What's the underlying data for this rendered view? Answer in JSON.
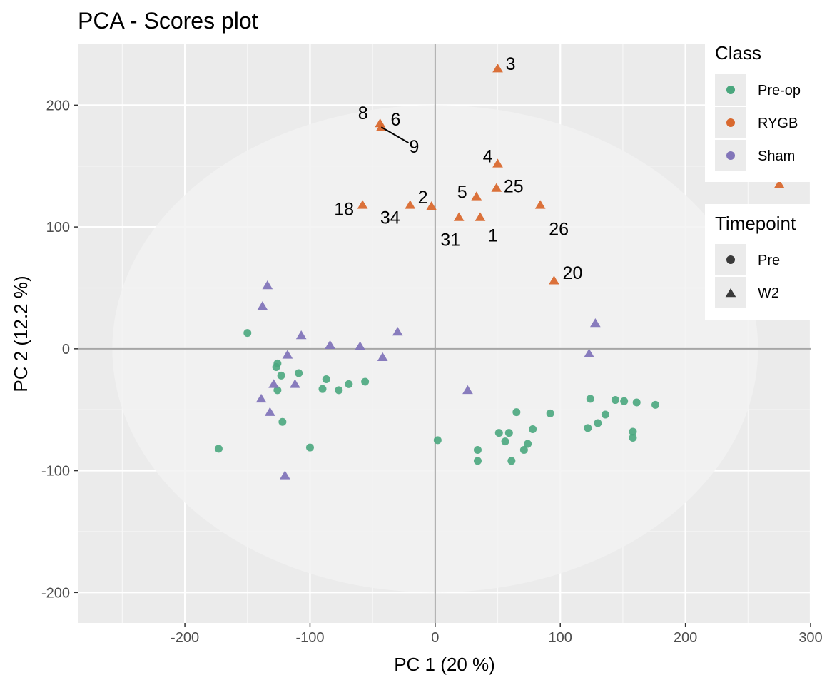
{
  "chart_data": {
    "type": "scatter",
    "title": "PCA - Scores plot",
    "xlabel": "PC 1 (20 %)",
    "ylabel": "PC 2 (12.2 %)",
    "xlim": [
      -285,
      300
    ],
    "ylim": [
      -225,
      250
    ],
    "xticks": [
      -200,
      -100,
      0,
      100,
      200,
      300
    ],
    "xtick_labels": [
      "-200",
      "-100",
      "0",
      "100",
      "200",
      "300"
    ],
    "yticks": [
      -200,
      -100,
      0,
      100,
      200
    ],
    "ytick_labels": [
      "-200",
      "-100",
      "0",
      "100",
      "200"
    ],
    "grid": true,
    "reference_lines": {
      "x": 0,
      "y": 0
    },
    "confidence_ellipse": {
      "center": [
        0,
        0
      ],
      "radius_x": 258,
      "radius_y": 200
    },
    "colors": {
      "Pre-op": "#4aa77e",
      "RYGB": "#d9692f",
      "Sham": "#8275b9"
    },
    "legend": [
      {
        "title": "Class",
        "entries": [
          "Pre-op",
          "RYGB",
          "Sham"
        ]
      },
      {
        "title": "Timepoint",
        "entries": [
          "Pre",
          "W2"
        ]
      }
    ],
    "series": [
      {
        "name": "Pre-op",
        "shape": "circle",
        "points": [
          [
            -173,
            -82
          ],
          [
            -150,
            13
          ],
          [
            -127,
            -15
          ],
          [
            -126,
            -12
          ],
          [
            -126,
            -34
          ],
          [
            -123,
            -22
          ],
          [
            -122,
            -60
          ],
          [
            -109,
            -20
          ],
          [
            -100,
            -81
          ],
          [
            -90,
            -33
          ],
          [
            -87,
            -25
          ],
          [
            -77,
            -34
          ],
          [
            -69,
            -29
          ],
          [
            -56,
            -27
          ],
          [
            2,
            -75
          ],
          [
            34,
            -83
          ],
          [
            34,
            -92
          ],
          [
            51,
            -69
          ],
          [
            56,
            -76
          ],
          [
            59,
            -69
          ],
          [
            61,
            -92
          ],
          [
            65,
            -52
          ],
          [
            71,
            -83
          ],
          [
            74,
            -78
          ],
          [
            78,
            -66
          ],
          [
            92,
            -53
          ],
          [
            122,
            -65
          ],
          [
            124,
            -41
          ],
          [
            130,
            -61
          ],
          [
            136,
            -54
          ],
          [
            144,
            -42
          ],
          [
            151,
            -43
          ],
          [
            158,
            -68
          ],
          [
            158,
            -73
          ],
          [
            161,
            -44
          ],
          [
            176,
            -46
          ]
        ]
      },
      {
        "name": "RYGB",
        "shape": "triangle",
        "points": [
          [
            50,
            230
          ],
          [
            -44,
            185
          ],
          [
            -43,
            182
          ],
          [
            50,
            152
          ],
          [
            49,
            132
          ],
          [
            33,
            125
          ],
          [
            84,
            118
          ],
          [
            -58,
            118
          ],
          [
            -20,
            118
          ],
          [
            -3,
            117
          ],
          [
            19,
            108
          ],
          [
            36,
            108
          ],
          [
            95,
            56
          ],
          [
            275,
            135
          ]
        ]
      },
      {
        "name": "Sham",
        "shape": "triangle",
        "points": [
          [
            -134,
            52
          ],
          [
            -138,
            35
          ],
          [
            -139,
            -41
          ],
          [
            -132,
            -52
          ],
          [
            -129,
            -29
          ],
          [
            -118,
            -5
          ],
          [
            -120,
            -104
          ],
          [
            -112,
            -29
          ],
          [
            -107,
            11
          ],
          [
            -84,
            3
          ],
          [
            -60,
            2
          ],
          [
            -42,
            -7
          ],
          [
            -30,
            14
          ],
          [
            26,
            -34
          ],
          [
            128,
            21
          ],
          [
            123,
            -4
          ]
        ]
      }
    ],
    "labels": [
      {
        "text": "3",
        "point": [
          50,
          230
        ]
      },
      {
        "text": "8",
        "point": [
          -44,
          185
        ]
      },
      {
        "text": "6",
        "point": [
          -43,
          182
        ]
      },
      {
        "text": "9",
        "point": [
          -43,
          182
        ]
      },
      {
        "text": "4",
        "point": [
          50,
          152
        ]
      },
      {
        "text": "25",
        "point": [
          49,
          132
        ]
      },
      {
        "text": "5",
        "point": [
          33,
          125
        ]
      },
      {
        "text": "2",
        "point": [
          -3,
          117
        ]
      },
      {
        "text": "18",
        "point": [
          -58,
          118
        ]
      },
      {
        "text": "34",
        "point": [
          -20,
          118
        ]
      },
      {
        "text": "26",
        "point": [
          84,
          118
        ]
      },
      {
        "text": "31",
        "point": [
          19,
          108
        ]
      },
      {
        "text": "1",
        "point": [
          36,
          108
        ]
      },
      {
        "text": "20",
        "point": [
          95,
          56
        ]
      }
    ]
  }
}
